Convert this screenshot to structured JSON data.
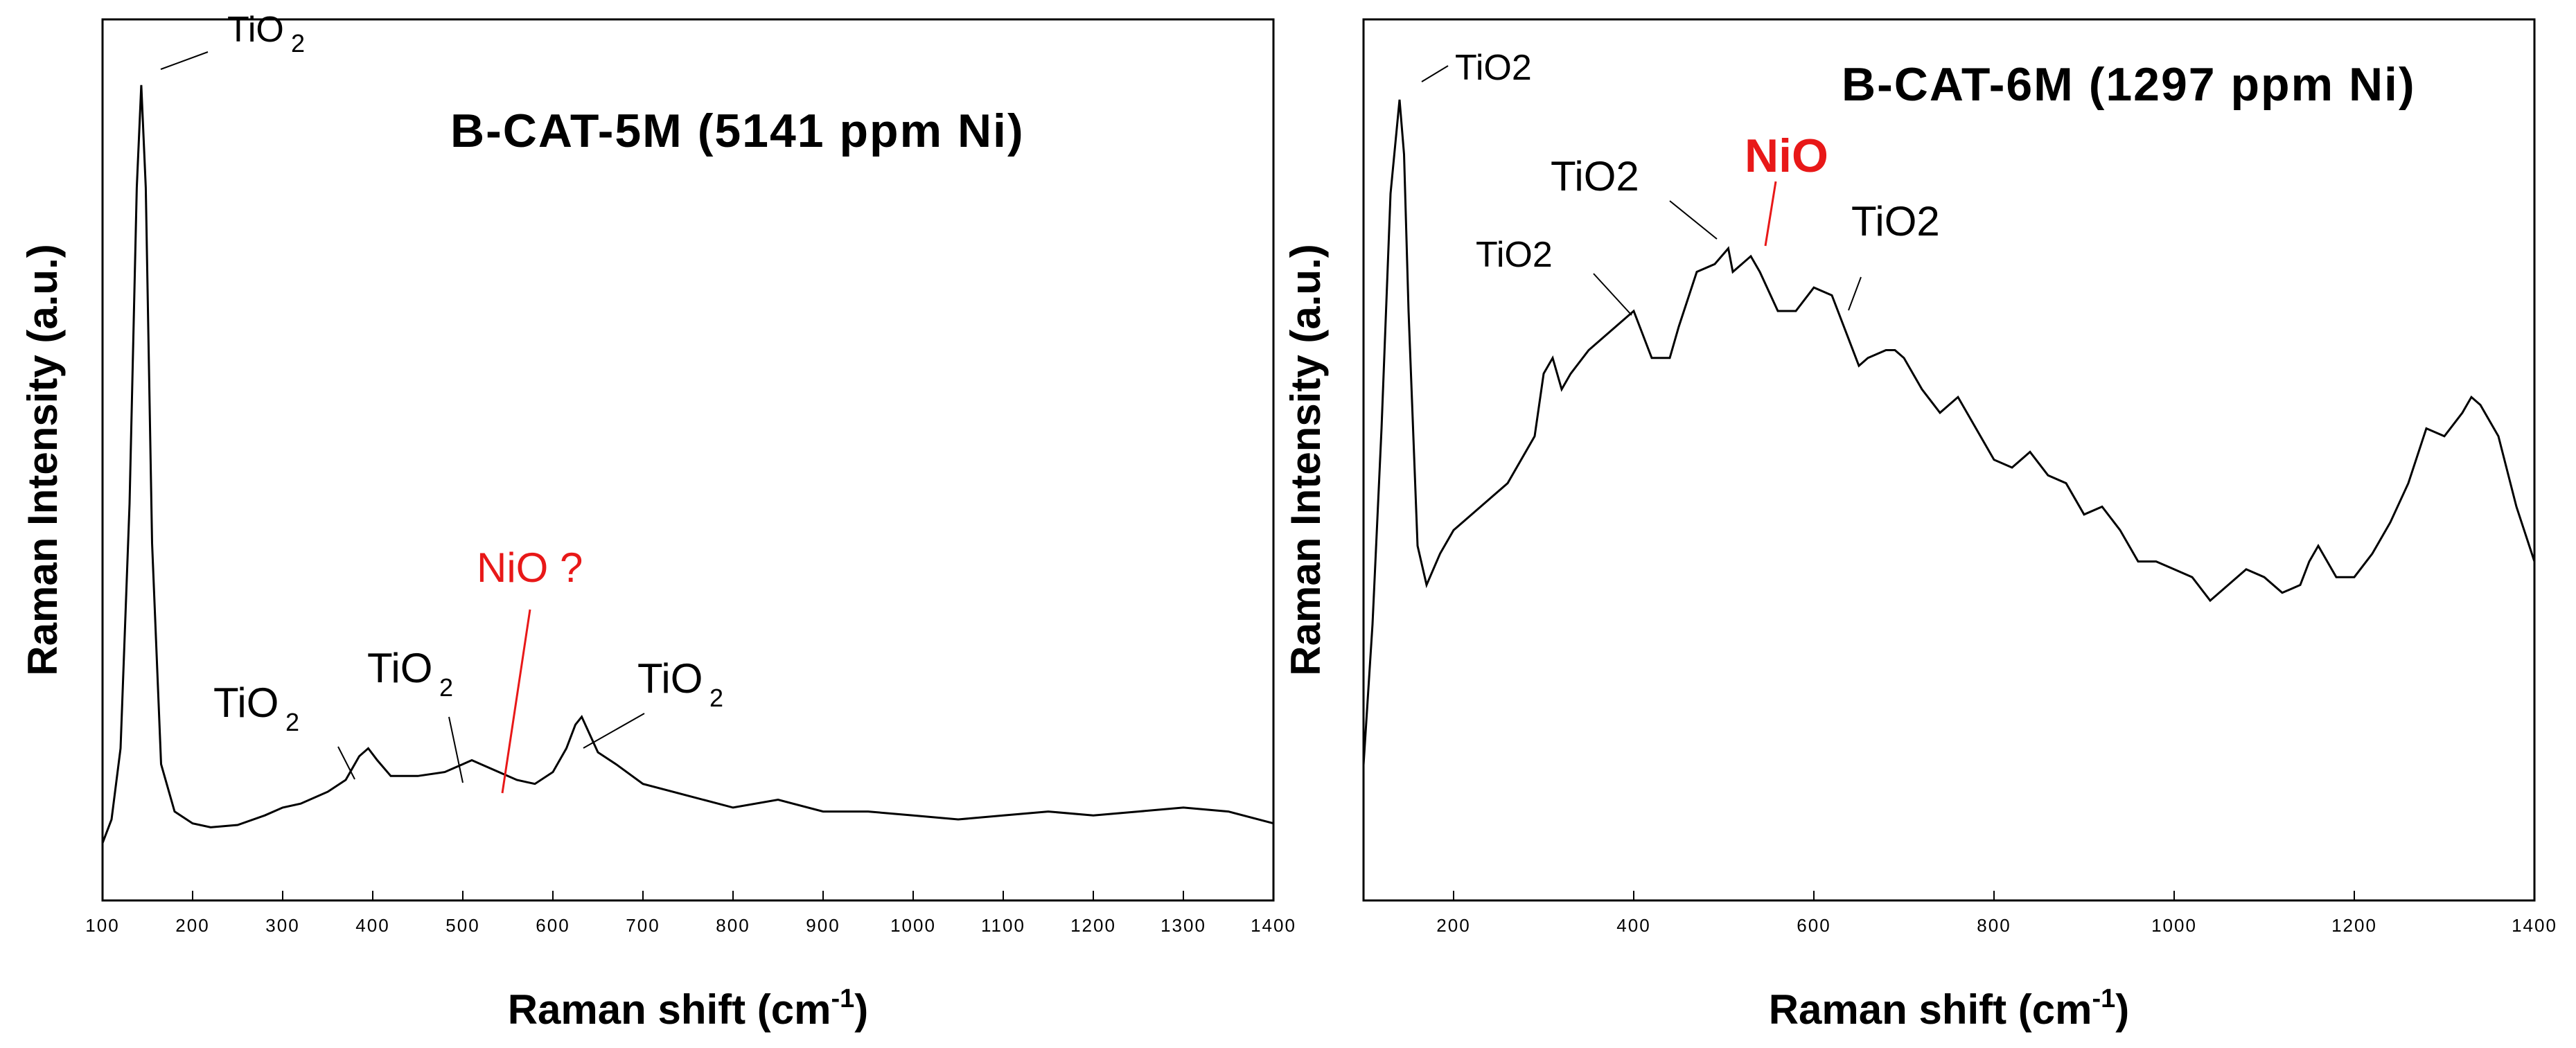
{
  "chart_data": [
    {
      "type": "line",
      "title": "B-CAT-5M (5141 ppm Ni)",
      "xlabel": "Raman shift (cm-1)",
      "ylabel": "Raman Intensity (a.u.)",
      "xlim": [
        100,
        1400
      ],
      "ylim": [
        0,
        100
      ],
      "xticks": [
        100,
        200,
        300,
        400,
        500,
        600,
        700,
        800,
        900,
        1000,
        1100,
        1200,
        1300,
        1400
      ],
      "series": [
        {
          "name": "B-CAT-5M",
          "x": [
            100,
            110,
            120,
            130,
            138,
            143,
            148,
            155,
            165,
            180,
            200,
            220,
            250,
            280,
            300,
            320,
            350,
            370,
            385,
            395,
            405,
            420,
            450,
            480,
            500,
            510,
            520,
            540,
            560,
            580,
            600,
            615,
            625,
            632,
            640,
            650,
            670,
            700,
            750,
            800,
            850,
            900,
            950,
            1000,
            1050,
            1100,
            1150,
            1200,
            1250,
            1300,
            1350,
            1400
          ],
          "y": [
            2,
            5,
            14,
            45,
            85,
            98,
            85,
            40,
            12,
            6,
            4.5,
            4,
            4.3,
            5.5,
            6.5,
            7,
            8.5,
            10,
            13,
            14,
            12.5,
            10.5,
            10.5,
            11,
            12,
            12.5,
            12,
            11,
            10,
            9.5,
            11,
            14,
            17,
            18,
            16,
            13.5,
            12,
            9.5,
            8,
            6.5,
            7.5,
            6,
            6,
            5.5,
            5,
            5.5,
            6,
            5.5,
            6,
            6.5,
            6,
            4.5
          ]
        }
      ],
      "annotations": [
        {
          "label": "TiO",
          "sub": "2",
          "x": 145
        },
        {
          "label": "TiO",
          "sub": "2",
          "x": 390
        },
        {
          "label": "TiO",
          "sub": "2",
          "x": 505
        },
        {
          "label": "TiO",
          "sub": "2",
          "x": 635
        },
        {
          "label": "NiO ?",
          "x": 545,
          "color": "#e81818"
        }
      ]
    },
    {
      "type": "line",
      "title": "B-CAT-6M (1297 ppm Ni)",
      "xlabel": "Raman shift (cm-1)",
      "ylabel": "Raman Intensity (a.u.)",
      "xlim": [
        100,
        1400
      ],
      "ylim": [
        0,
        100
      ],
      "xticks": [
        200,
        400,
        600,
        800,
        1000,
        1200,
        1400
      ],
      "series": [
        {
          "name": "B-CAT-6M",
          "x": [
            100,
            110,
            120,
            130,
            140,
            145,
            150,
            160,
            170,
            185,
            200,
            230,
            260,
            290,
            300,
            310,
            320,
            330,
            350,
            370,
            390,
            400,
            410,
            420,
            440,
            450,
            470,
            490,
            505,
            510,
            520,
            530,
            540,
            560,
            580,
            600,
            620,
            640,
            650,
            660,
            680,
            690,
            700,
            720,
            740,
            760,
            780,
            800,
            820,
            840,
            860,
            880,
            900,
            920,
            940,
            960,
            980,
            1000,
            1020,
            1040,
            1060,
            1080,
            1100,
            1120,
            1140,
            1150,
            1160,
            1180,
            1200,
            1220,
            1240,
            1260,
            1280,
            1300,
            1320,
            1330,
            1340,
            1360,
            1380,
            1400
          ],
          "y": [
            12,
            30,
            55,
            85,
            97,
            90,
            70,
            40,
            35,
            39,
            42,
            45,
            48,
            54,
            62,
            64,
            60,
            62,
            65,
            67,
            69,
            70,
            67,
            64,
            64,
            68,
            75,
            76,
            78,
            75,
            76,
            77,
            75,
            70,
            70,
            73,
            72,
            66,
            63,
            64,
            65,
            65,
            64,
            60,
            57,
            59,
            55,
            51,
            50,
            52,
            49,
            48,
            44,
            45,
            42,
            38,
            38,
            37,
            36,
            33,
            35,
            37,
            36,
            34,
            35,
            38,
            40,
            36,
            36,
            39,
            43,
            48,
            55,
            54,
            57,
            59,
            58,
            54,
            45,
            38
          ]
        }
      ],
      "annotations": [
        {
          "label": "TiO2",
          "x": 140
        },
        {
          "label": "TiO2",
          "x": 300
        },
        {
          "label": "TiO2",
          "x": 500
        },
        {
          "label": "NiO",
          "x": 530,
          "color": "#e81818"
        },
        {
          "label": "TiO2",
          "x": 620
        }
      ]
    }
  ],
  "axis_title_left": {
    "pre": "Raman shift (cm",
    "sup": "-1",
    "post": ")"
  },
  "axis_title_right": {
    "pre": "Raman shift (cm",
    "sup": "-1",
    "post": ")"
  },
  "ylabel_left": "Raman Intensity (a.u.)",
  "ylabel_right": "Raman Intensity (a.u.)",
  "colors": {
    "line": "#000000",
    "highlight": "#e81818"
  }
}
